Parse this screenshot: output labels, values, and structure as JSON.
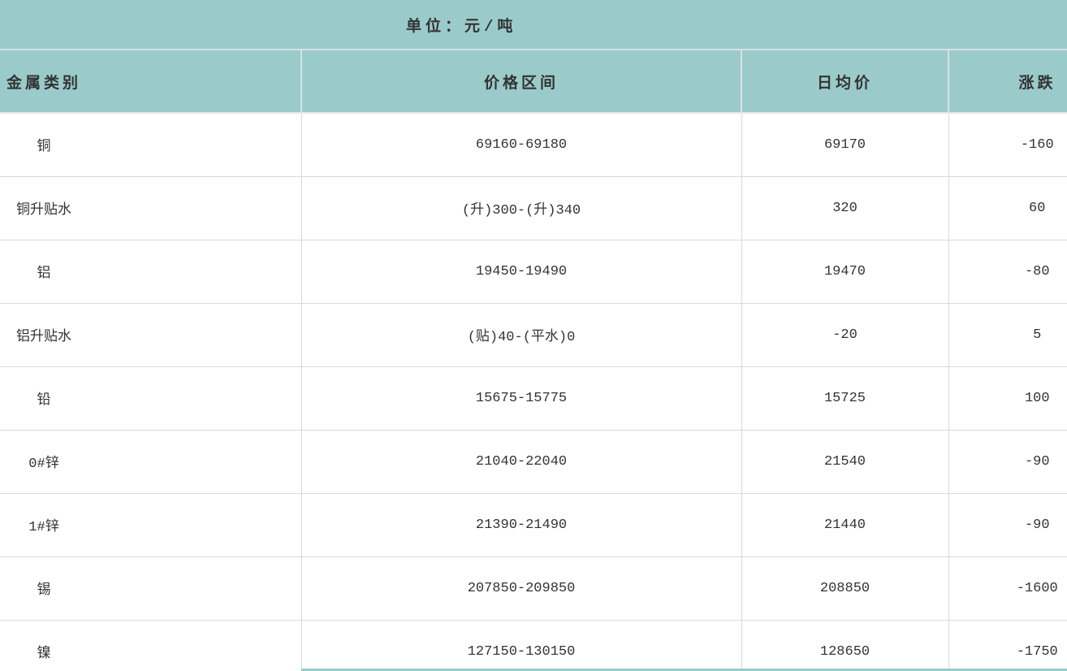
{
  "page": {
    "unit_caption": "单位：元/吨"
  },
  "chart_data": {
    "type": "table",
    "title": "单位：元/吨",
    "unit": "元/吨",
    "columns": [
      "金属类别",
      "价格区间",
      "日均价",
      "涨跌"
    ],
    "rows": [
      {
        "metal": "铜",
        "price_range": "69160-69180",
        "daily_avg": "69170",
        "change": "-160"
      },
      {
        "metal": "铜升贴水",
        "price_range": "(升)300-(升)340",
        "daily_avg": "320",
        "change": "60"
      },
      {
        "metal": "铝",
        "price_range": "19450-19490",
        "daily_avg": "19470",
        "change": "-80"
      },
      {
        "metal": "铝升贴水",
        "price_range": "(贴)40-(平水)0",
        "daily_avg": "-20",
        "change": "5"
      },
      {
        "metal": "铅",
        "price_range": "15675-15775",
        "daily_avg": "15725",
        "change": "100"
      },
      {
        "metal": "0#锌",
        "price_range": "21040-22040",
        "daily_avg": "21540",
        "change": "-90"
      },
      {
        "metal": "1#锌",
        "price_range": "21390-21490",
        "daily_avg": "21440",
        "change": "-90"
      },
      {
        "metal": "锡",
        "price_range": "207850-209850",
        "daily_avg": "208850",
        "change": "-1600"
      },
      {
        "metal": "镍",
        "price_range": "127150-130150",
        "daily_avg": "128650",
        "change": "-1750"
      }
    ]
  },
  "colors": {
    "header_bg": "#9acbca",
    "grid_line": "#d9d9d9",
    "header_divider": "#d7e2e1",
    "text": "#333333",
    "body_bg": "#ffffff"
  }
}
